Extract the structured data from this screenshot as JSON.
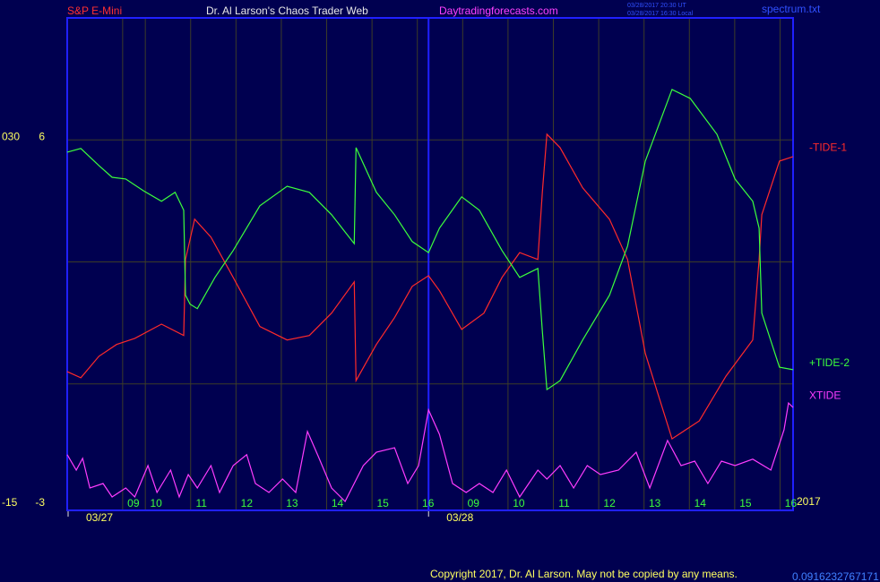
{
  "chart_data": {
    "type": "line",
    "symbol": "S&P E-Mini",
    "title": "Dr. Al Larson's Chaos Trader Web",
    "website": "Daytradingforecasts.com",
    "timestamps": [
      "03/28/2017 20:30 UT",
      "03/28/2017 16:30 Local"
    ],
    "file": "spectrum.txt",
    "copyright": "Copyright 2017, Dr. Al Larson. May not be copied by any means.",
    "footer_number": "0.0916232767171",
    "year_label": "2017",
    "xlim": [
      -0.96,
      15.05
    ],
    "xticks": [
      {
        "value": 0.5,
        "label": "09"
      },
      {
        "value": 1,
        "label": "10"
      },
      {
        "value": 2,
        "label": "11"
      },
      {
        "value": 3,
        "label": "12"
      },
      {
        "value": 4,
        "label": "13"
      },
      {
        "value": 5,
        "label": "14"
      },
      {
        "value": 6,
        "label": "15"
      },
      {
        "value": 7,
        "label": "16"
      },
      {
        "value": 8,
        "label": "09"
      },
      {
        "value": 9,
        "label": "10"
      },
      {
        "value": 10,
        "label": "11"
      },
      {
        "value": 11,
        "label": "12"
      },
      {
        "value": 12,
        "label": "13"
      },
      {
        "value": 13,
        "label": "14"
      },
      {
        "value": 14,
        "label": "15"
      },
      {
        "value": 15,
        "label": "16"
      }
    ],
    "date_ticks": [
      {
        "value": -0.94,
        "label": "03/27"
      },
      {
        "value": 7.01,
        "label": "03/28"
      }
    ],
    "ylim": [
      -3,
      9
    ],
    "yticks": [
      -3,
      6
    ],
    "ygrid": [
      0,
      3,
      6
    ],
    "y2lim": [
      -15,
      45
    ],
    "y2ticks": [
      -15,
      {
        "value": 30,
        "label": "030"
      }
    ],
    "grid": true,
    "series": [
      {
        "name": "-TIDE-1",
        "color": "#ff2a2a",
        "x": [
          -0.96,
          -0.66,
          -0.26,
          0.13,
          0.53,
          1.12,
          1.61,
          1.65,
          1.85,
          2.21,
          2.7,
          3.29,
          3.89,
          4.38,
          4.87,
          5.37,
          5.41,
          5.86,
          6.26,
          6.65,
          7.01,
          7.25,
          7.74,
          8.23,
          8.63,
          9.02,
          9.42,
          9.52,
          9.62,
          9.91,
          10.41,
          11.0,
          11.4,
          11.79,
          12.38,
          12.98,
          13.57,
          14.16,
          14.3,
          14.36,
          14.75,
          15.05
        ],
        "values": [
          0.3,
          0.15,
          0.68,
          0.97,
          1.12,
          1.47,
          1.19,
          3.06,
          4.05,
          3.61,
          2.62,
          1.41,
          1.08,
          1.19,
          1.74,
          2.51,
          0.08,
          0.97,
          1.63,
          2.4,
          2.66,
          2.29,
          1.34,
          1.74,
          2.62,
          3.23,
          3.06,
          4.71,
          6.14,
          5.81,
          4.82,
          4.05,
          3.06,
          0.75,
          -1.35,
          -0.91,
          0.19,
          1.08,
          3.06,
          4.16,
          5.48,
          5.59
        ]
      },
      {
        "name": "+TIDE-2",
        "color": "#3cff3c",
        "x": [
          -0.96,
          -0.66,
          -0.26,
          0.03,
          0.33,
          0.72,
          1.12,
          1.42,
          1.61,
          1.65,
          1.75,
          1.91,
          2.3,
          2.7,
          3.29,
          3.89,
          4.38,
          4.87,
          5.37,
          5.41,
          5.86,
          6.26,
          6.65,
          7.01,
          7.25,
          7.74,
          8.13,
          8.63,
          9.02,
          9.42,
          9.52,
          9.62,
          9.91,
          10.41,
          11.0,
          11.4,
          11.79,
          12.38,
          12.78,
          13.37,
          13.77,
          14.16,
          14.3,
          14.36,
          14.75,
          15.05
        ],
        "values": [
          5.7,
          5.79,
          5.37,
          5.08,
          5.04,
          4.75,
          4.49,
          4.71,
          4.27,
          2.18,
          1.96,
          1.85,
          2.62,
          3.28,
          4.38,
          4.86,
          4.71,
          4.16,
          3.45,
          5.81,
          4.71,
          4.16,
          3.5,
          3.23,
          3.83,
          4.6,
          4.27,
          3.28,
          2.62,
          2.84,
          1.3,
          -0.14,
          0.08,
          1.08,
          2.18,
          3.39,
          5.48,
          7.24,
          7.02,
          6.14,
          5.04,
          4.49,
          3.83,
          1.74,
          0.41,
          0.35
        ]
      },
      {
        "name": "XTIDE",
        "color": "#ff3cff",
        "x": [
          -0.96,
          -0.76,
          -0.62,
          -0.46,
          -0.17,
          0.03,
          0.33,
          0.53,
          0.82,
          1.02,
          1.32,
          1.51,
          1.71,
          1.91,
          2.21,
          2.4,
          2.7,
          3.0,
          3.19,
          3.49,
          3.79,
          4.08,
          4.34,
          4.58,
          4.87,
          5.17,
          5.57,
          5.86,
          6.26,
          6.55,
          6.79,
          7.01,
          7.25,
          7.54,
          7.84,
          8.13,
          8.43,
          8.73,
          9.02,
          9.42,
          9.62,
          9.91,
          10.21,
          10.51,
          10.8,
          11.2,
          11.59,
          11.89,
          12.28,
          12.58,
          12.88,
          13.17,
          13.47,
          13.77,
          14.16,
          14.56,
          14.85,
          14.95,
          15.05
        ],
        "values": [
          -1.74,
          -2.12,
          -1.83,
          -2.56,
          -2.45,
          -2.78,
          -2.56,
          -2.78,
          -2.01,
          -2.67,
          -2.12,
          -2.78,
          -2.23,
          -2.56,
          -2.01,
          -2.67,
          -2.01,
          -1.74,
          -2.45,
          -2.67,
          -2.34,
          -2.67,
          -1.17,
          -1.79,
          -2.56,
          -2.89,
          -2.01,
          -1.68,
          -1.57,
          -2.45,
          -2.01,
          -0.64,
          -1.24,
          -2.45,
          -2.67,
          -2.45,
          -2.67,
          -2.12,
          -2.78,
          -2.12,
          -2.34,
          -2.01,
          -2.56,
          -2.01,
          -2.23,
          -2.12,
          -1.68,
          -2.56,
          -1.39,
          -2.01,
          -1.9,
          -2.45,
          -1.9,
          -2.01,
          -1.85,
          -2.12,
          -1.13,
          -0.47,
          -0.58
        ]
      }
    ]
  }
}
